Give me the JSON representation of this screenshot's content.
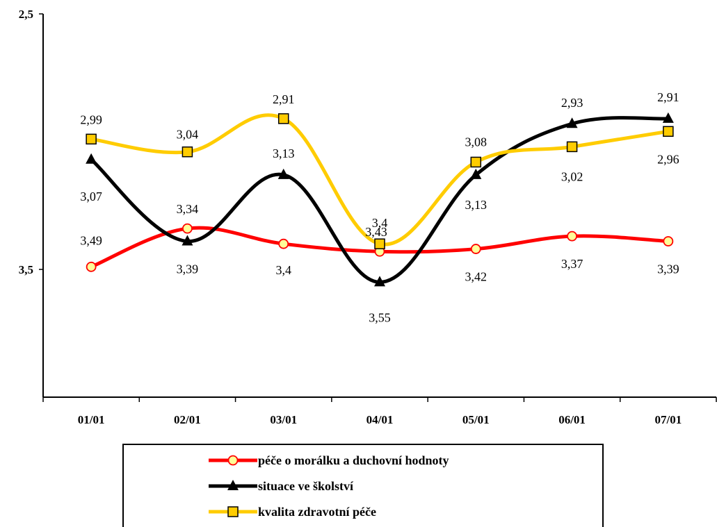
{
  "chart_data": {
    "type": "line",
    "categories": [
      "01/01",
      "02/01",
      "03/01",
      "04/01",
      "05/01",
      "06/01",
      "07/01"
    ],
    "y_axis": {
      "ylim": [
        4.0,
        2.5
      ],
      "inverted": true,
      "tick_labels": [
        "2,5",
        "3,5"
      ],
      "tick_values": [
        2.5,
        3.5
      ],
      "grid": false
    },
    "legend": {
      "placement": "bottom",
      "boxed": true
    },
    "series": [
      {
        "name": "péče o morálku a duchovní hodnoty",
        "color": "#ff0000",
        "marker": "circle",
        "marker_fill": "#ffff99",
        "values": [
          3.49,
          3.34,
          3.4,
          3.43,
          3.42,
          3.37,
          3.39
        ],
        "labels": [
          "3,49",
          "3,34",
          "3,4",
          "3,43",
          "3,42",
          "3,37",
          "3,39"
        ]
      },
      {
        "name": "situace ve školství",
        "color": "#000000",
        "marker": "triangle",
        "marker_fill": "#000000",
        "values": [
          3.07,
          3.39,
          3.13,
          3.55,
          3.13,
          2.93,
          2.91
        ],
        "labels": [
          "3,07",
          "3,39",
          "3,13",
          "3,55",
          "3,13",
          "2,93",
          "2,91"
        ]
      },
      {
        "name": "kvalita zdravotní péče",
        "color": "#ffcc00",
        "marker": "square",
        "marker_fill": "#ffcc00",
        "values": [
          2.99,
          3.04,
          2.91,
          3.4,
          3.08,
          3.02,
          2.96
        ],
        "labels": [
          "2,99",
          "3,04",
          "2,91",
          "3,4",
          "3,08",
          "3,02",
          "2,96"
        ]
      }
    ]
  }
}
